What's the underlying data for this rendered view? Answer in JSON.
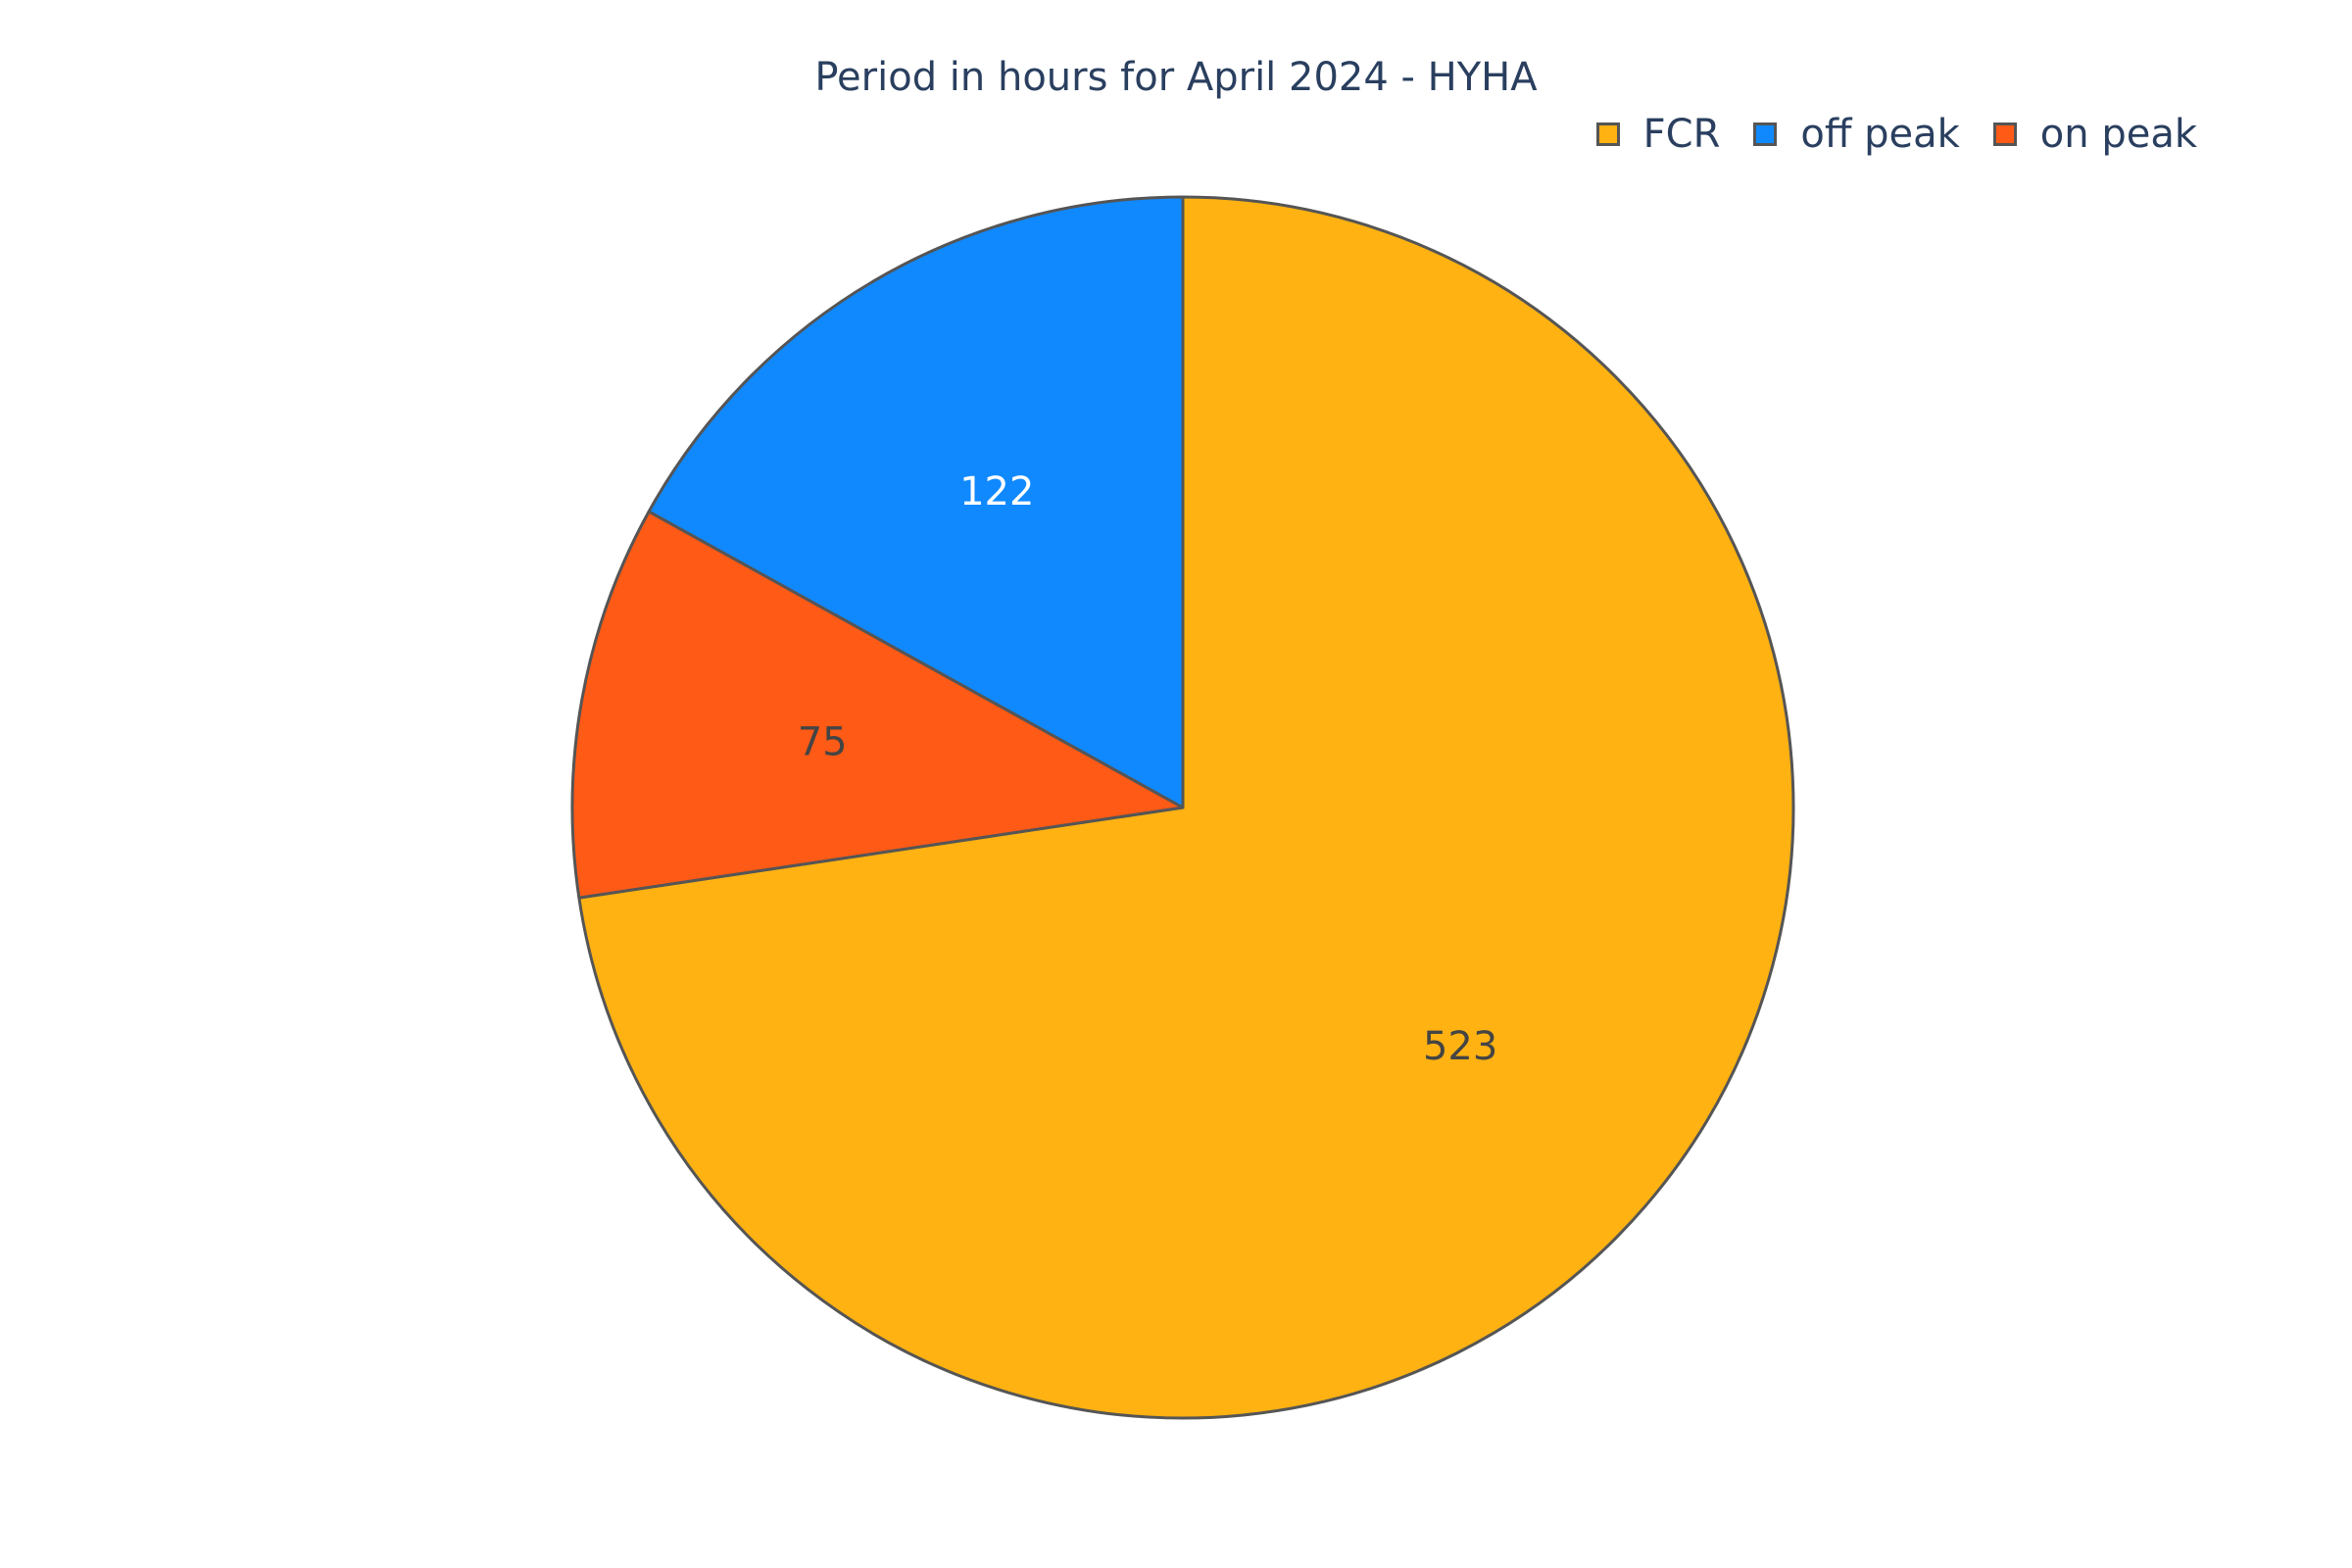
{
  "chart_data": {
    "type": "pie",
    "title": "Period in hours for April 2024 - HYHA",
    "categories": [
      "FCR",
      "off peak",
      "on peak"
    ],
    "values": [
      523,
      122,
      75
    ],
    "colors": [
      "#ffb212",
      "#1089ff",
      "#ff5a16"
    ],
    "label_colors": [
      "#444444",
      "#ffffff",
      "#444444"
    ],
    "slice_order": [
      "FCR",
      "on peak",
      "off peak"
    ],
    "direction": "clockwise",
    "start_angle": "top",
    "legend_position": "top-right",
    "outline_color": "#555555"
  }
}
